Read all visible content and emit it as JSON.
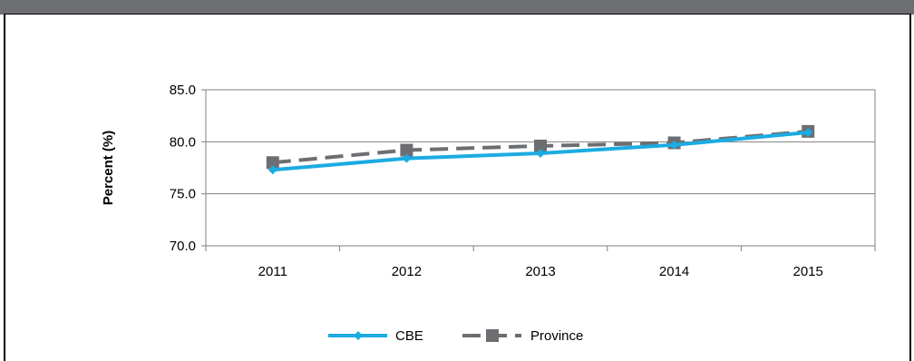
{
  "chart_data": {
    "type": "line",
    "categories": [
      "2011",
      "2012",
      "2013",
      "2014",
      "2015"
    ],
    "series": [
      {
        "name": "CBE",
        "values": [
          77.3,
          78.4,
          78.9,
          79.7,
          80.9
        ],
        "color": "#1cabe2",
        "marker": "diamond",
        "dash": "solid"
      },
      {
        "name": "Province",
        "values": [
          78.0,
          79.2,
          79.6,
          79.9,
          81.0
        ],
        "color": "#6d6e71",
        "marker": "square",
        "dash": "dashed"
      }
    ],
    "ylabel": "Percent (%)",
    "xlabel": "",
    "ylim": [
      70.0,
      85.0
    ],
    "yticks": [
      "70.0",
      "75.0",
      "80.0",
      "85.0"
    ],
    "grid": true,
    "legend_position": "bottom"
  }
}
